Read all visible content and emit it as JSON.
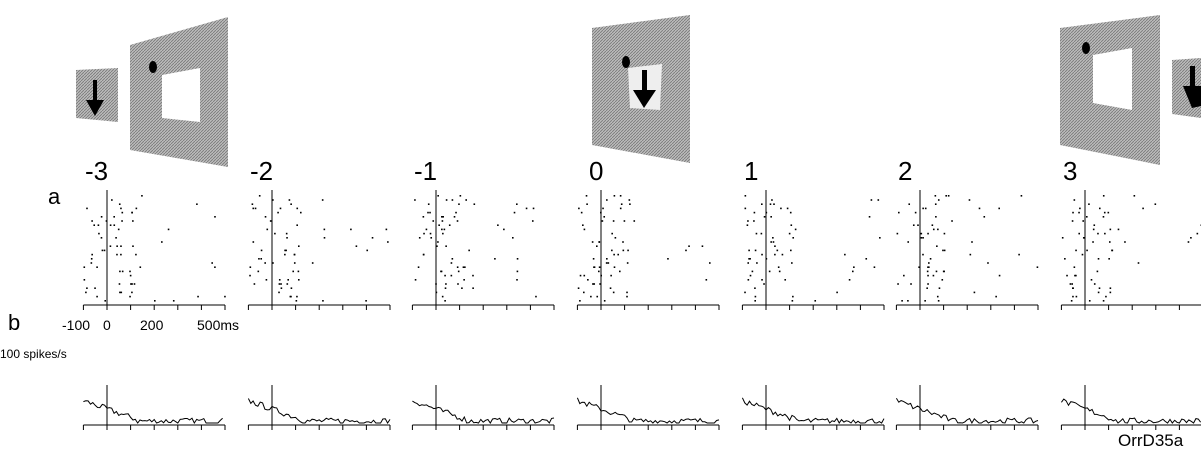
{
  "panels": [
    {
      "label": "-3"
    },
    {
      "label": "-2"
    },
    {
      "label": "-1"
    },
    {
      "label": "0"
    },
    {
      "label": "1"
    },
    {
      "label": "2"
    },
    {
      "label": "3"
    }
  ],
  "row_labels": {
    "raster": "a",
    "psth": "b"
  },
  "axis_ticks": [
    "-100",
    "0",
    "200",
    "500ms"
  ],
  "psth_scale": "100 spikes/s",
  "figure_id": "OrrD35a"
}
